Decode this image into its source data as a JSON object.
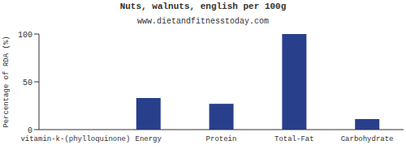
{
  "chart_data": {
    "type": "bar",
    "title": "Nuts, walnuts, english per 100g",
    "subtitle": "www.dietandfitnesstoday.com",
    "y_label": "Percentage of RDA (%)",
    "categories": [
      "vitamin-k-(phylloquinone)",
      "Energy",
      "Protein",
      "Total-Fat",
      "Carbohydrate"
    ],
    "values": [
      0,
      33,
      27,
      100,
      11
    ],
    "color": "#283f8c",
    "ylim": [
      0,
      100
    ],
    "yticks": [
      0,
      50,
      100
    ]
  }
}
